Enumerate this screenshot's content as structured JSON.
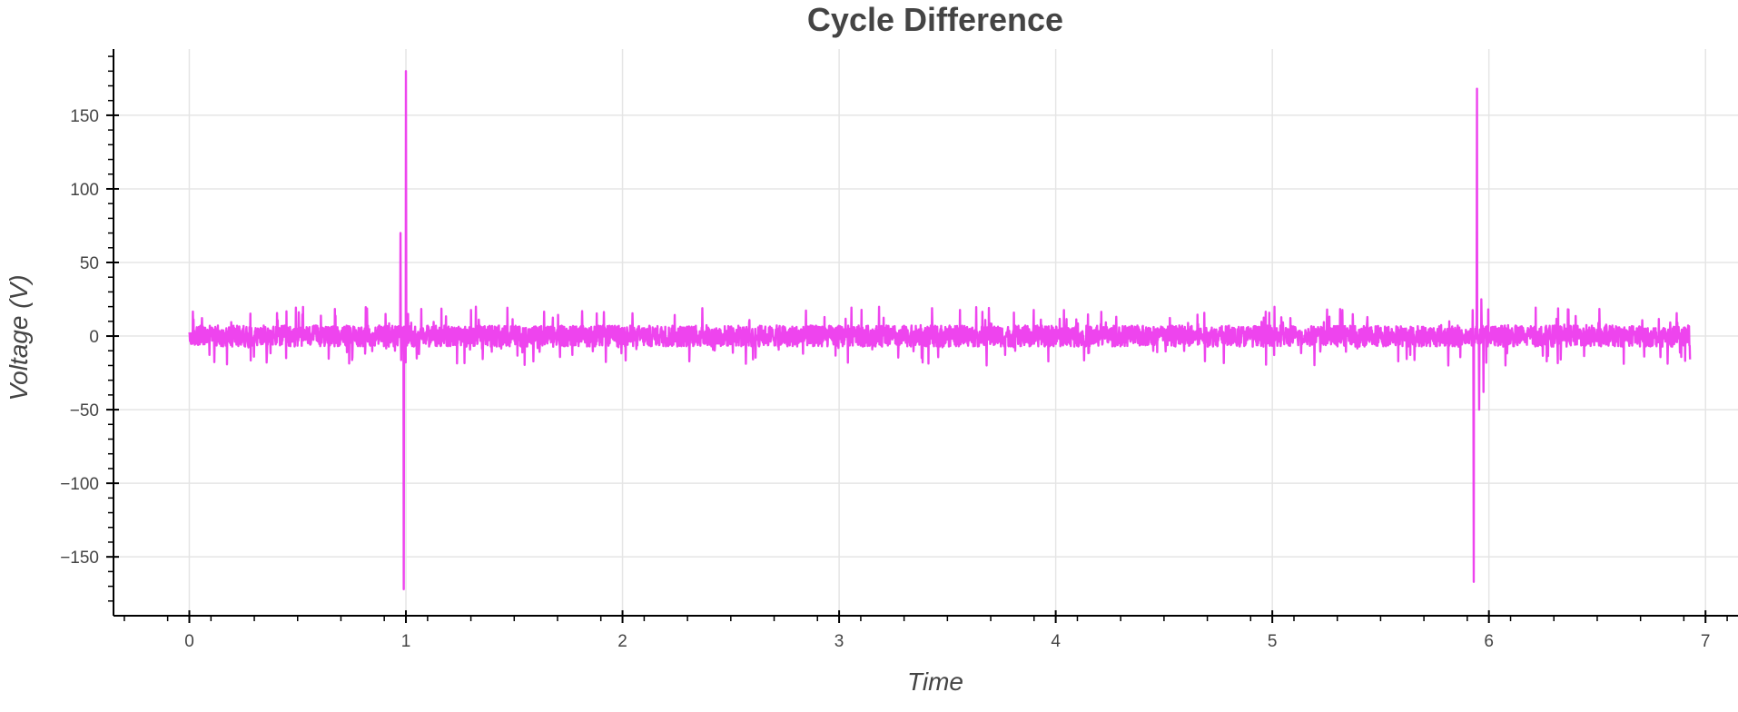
{
  "chart_data": {
    "type": "line",
    "title": "Cycle Difference",
    "xlabel": "Time",
    "ylabel": "Voltage (V)",
    "xlim": [
      -0.35,
      7.15
    ],
    "ylim": [
      -190,
      195
    ],
    "xticks": [
      0,
      1,
      2,
      3,
      4,
      5,
      6,
      7
    ],
    "yticks": [
      150,
      100,
      50,
      0,
      -50,
      -100,
      -150
    ],
    "xtick_labels": [
      "0",
      "1",
      "2",
      "3",
      "4",
      "5",
      "6",
      "7"
    ],
    "ytick_labels": [
      "150",
      "100",
      "50",
      "0",
      "−50",
      "−100",
      "−150"
    ],
    "grid": true,
    "series": [
      {
        "color": "#ee44ee",
        "x_range": [
          0,
          6.93
        ],
        "baseline_noise_amplitude": 12,
        "peak_noise_amplitude": 20,
        "spikes": [
          {
            "x": 0.975,
            "y": 70
          },
          {
            "x": 0.99,
            "y": -172
          },
          {
            "x": 1.0,
            "y": 180
          },
          {
            "x": 1.01,
            "y": 15
          },
          {
            "x": 5.93,
            "y": -167
          },
          {
            "x": 5.945,
            "y": 168
          },
          {
            "x": 5.955,
            "y": -50
          },
          {
            "x": 5.965,
            "y": 25
          },
          {
            "x": 5.975,
            "y": -38
          }
        ]
      }
    ]
  }
}
